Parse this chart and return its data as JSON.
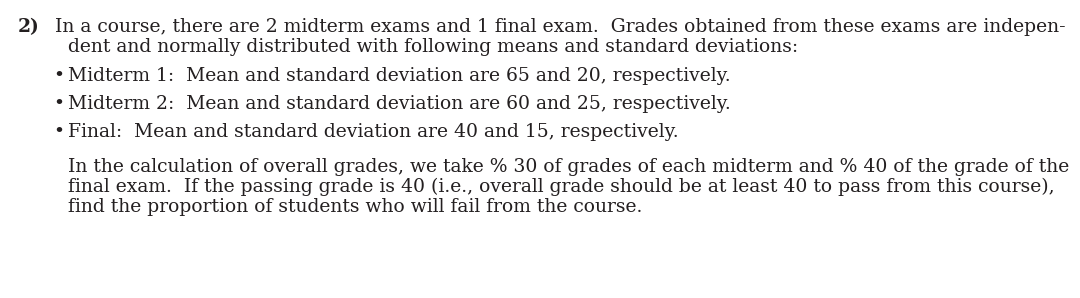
{
  "background_color": "#ffffff",
  "text_color": "#231f20",
  "figsize": [
    10.8,
    2.98
  ],
  "dpi": 100,
  "question_number": "2)",
  "line1": "In a course, there are 2 midterm exams and 1 final exam.  Grades obtained from these exams are indepen-",
  "line2": "dent and normally distributed with following means and standard deviations:",
  "bullet1": "Midterm 1:  Mean and standard deviation are 65 and 20, respectively.",
  "bullet2": "Midterm 2:  Mean and standard deviation are 60 and 25, respectively.",
  "bullet3": "Final:  Mean and standard deviation are 40 and 15, respectively.",
  "para2_line1": "In the calculation of overall grades, we take % 30 of grades of each midterm and % 40 of the grade of the",
  "para2_line2": "final exam.  If the passing grade is 40 (i.e., overall grade should be at least 40 to pass from this course),",
  "para2_line3": "find the proportion of students who will fail from the course.",
  "font_family": "serif",
  "font_size": 13.5
}
